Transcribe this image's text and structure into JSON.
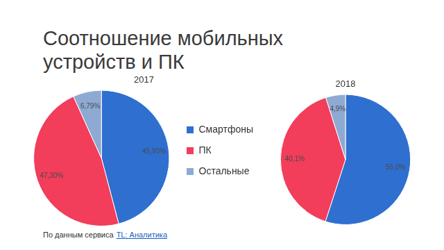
{
  "title": "Соотношение мобильных устройств и ПК",
  "source": "По данным сервиса",
  "source_link": "TL: Аналитика",
  "chart_data": [
    {
      "type": "pie",
      "title": "2017",
      "categories": [
        "Смартфоны",
        "ПК",
        "Остальные"
      ],
      "values": [
        45.9,
        47.3,
        6.79
      ],
      "value_labels": [
        "45,90%",
        "47,30%",
        "6,79%"
      ],
      "colors": [
        "#2f6fd0",
        "#f23d5b",
        "#8eaad3"
      ],
      "data_labels": true,
      "legend": "right"
    },
    {
      "type": "pie",
      "title": "2018",
      "categories": [
        "Смартфоны",
        "ПК",
        "Остальные"
      ],
      "values": [
        55.0,
        40.1,
        4.9
      ],
      "value_labels": [
        "55,0%",
        "40,1%",
        "4,9%"
      ],
      "colors": [
        "#2f6fd0",
        "#f23d5b",
        "#8eaad3"
      ],
      "data_labels": true
    }
  ]
}
